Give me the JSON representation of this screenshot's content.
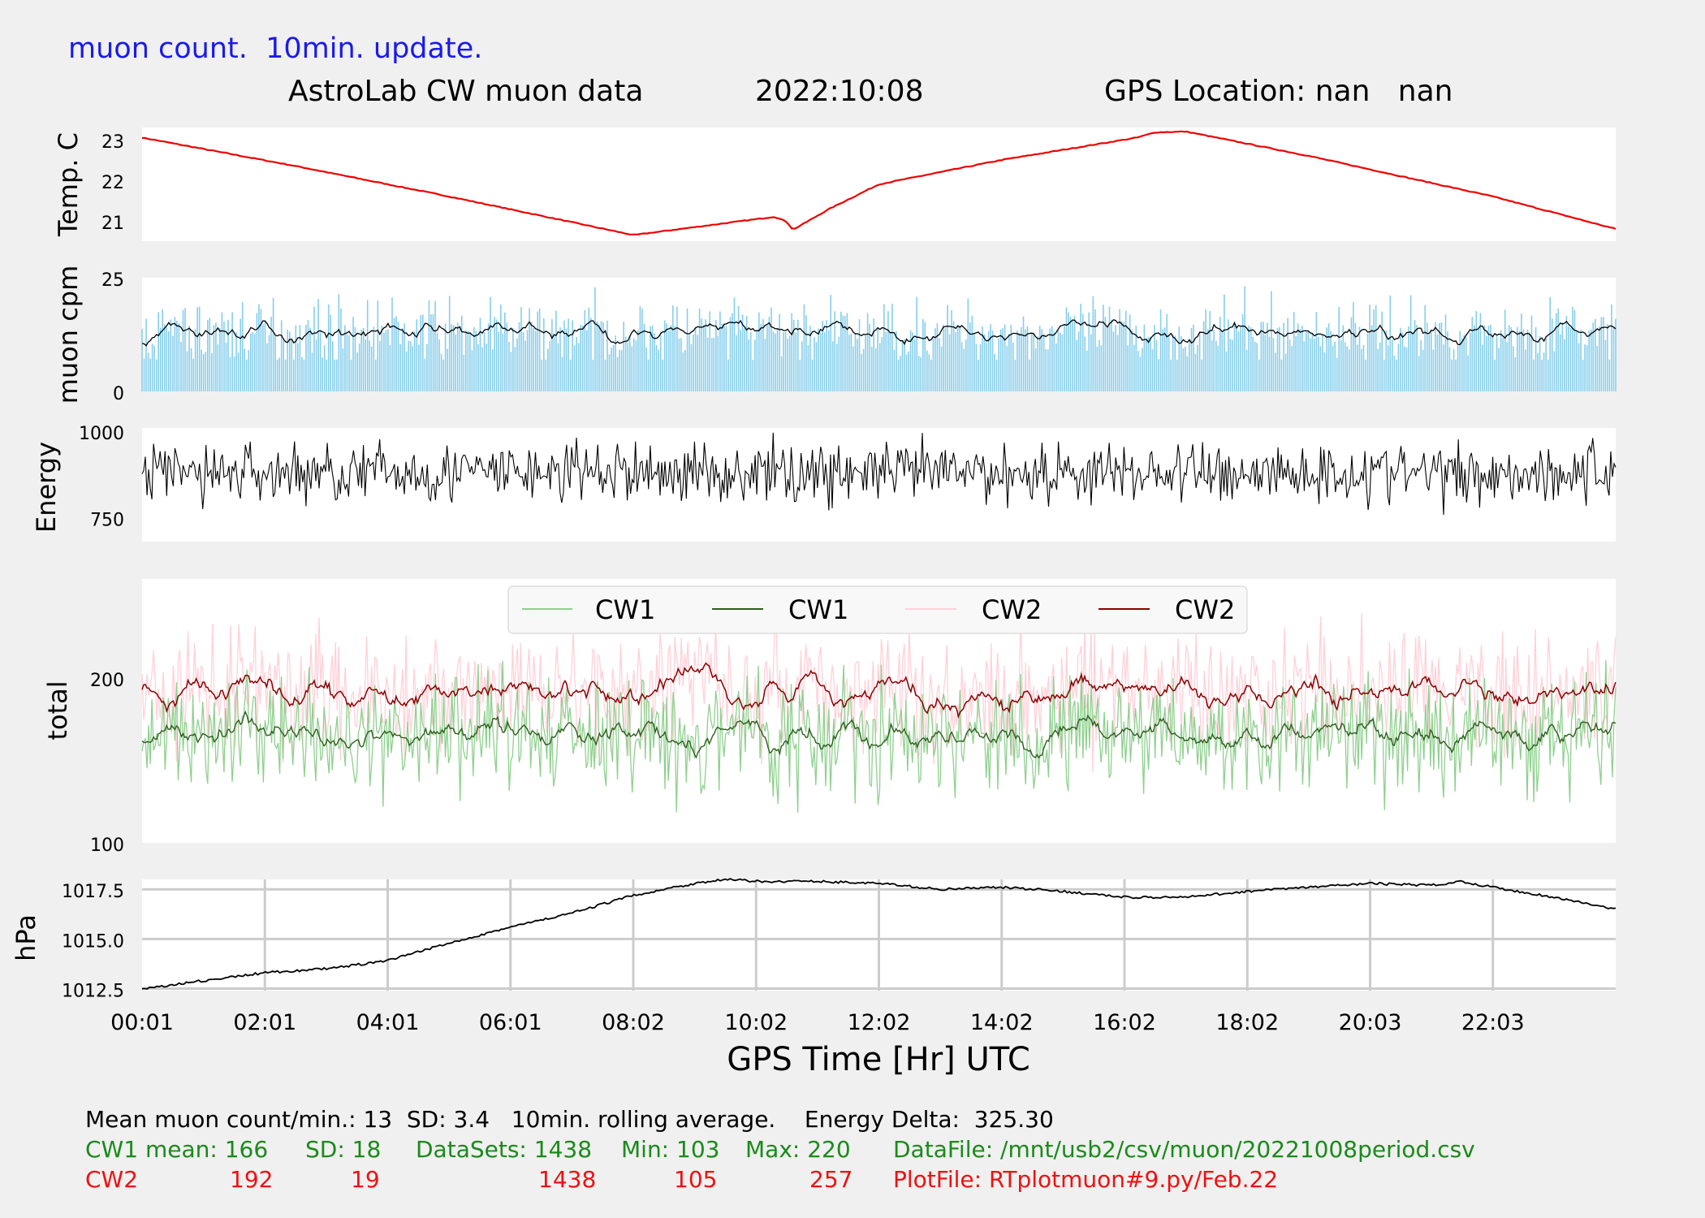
{
  "header": {
    "update_label": "muon count.  10min. update.",
    "title": "AstroLab CW muon data",
    "date": "2022:10:08",
    "gps_location": "GPS Location: nan   nan"
  },
  "x_axis": {
    "label": "GPS Time  [Hr] UTC",
    "ticks": [
      "00:01",
      "02:01",
      "04:01",
      "06:01",
      "08:02",
      "10:02",
      "12:02",
      "14:02",
      "16:02",
      "18:02",
      "20:03",
      "22:03"
    ]
  },
  "chart_data": [
    {
      "type": "line",
      "panel": "temperature",
      "ylabel": "Temp. C",
      "yticks": [
        21,
        22,
        23
      ],
      "ylim": [
        20.5,
        23.3
      ],
      "series": [
        {
          "color": "#ee0000",
          "x_hours": [
            0,
            2.5,
            5,
            8,
            10.3,
            10.5,
            10.6,
            11.2,
            12,
            14,
            16.2,
            16.5,
            17,
            19,
            22,
            24
          ],
          "values": [
            23.05,
            22.35,
            21.6,
            20.65,
            21.1,
            20.98,
            20.78,
            21.3,
            21.9,
            22.5,
            23.05,
            23.18,
            23.2,
            22.6,
            21.6,
            20.8
          ]
        }
      ]
    },
    {
      "type": "bar+line",
      "panel": "muon cpm",
      "ylabel": "muon cpm",
      "yticks": [
        0,
        25
      ],
      "ylim": [
        0,
        25
      ],
      "bar_color": "#87ceeb",
      "rolling_color": "#000000",
      "bar_typical_range": [
        7,
        24
      ],
      "rolling_mean": 13
    },
    {
      "type": "line",
      "panel": "energy",
      "ylabel": "Energy",
      "yticks": [
        750,
        1000
      ],
      "ylim": [
        680,
        1010
      ],
      "color": "#000000",
      "typical_range": [
        760,
        990
      ]
    },
    {
      "type": "line",
      "panel": "total",
      "ylabel": "total",
      "yticks": [
        100,
        200
      ],
      "ylim": [
        100,
        260
      ],
      "legend": [
        {
          "name": "CW1",
          "color": "#8fd08f"
        },
        {
          "name": "CW1",
          "color": "#2e5e1e"
        },
        {
          "name": "CW2",
          "color": "#ffd0d8"
        },
        {
          "name": "CW2",
          "color": "#8b0000"
        }
      ],
      "cw1_mean": 166,
      "cw2_mean": 192
    },
    {
      "type": "line",
      "panel": "pressure",
      "ylabel": "hPa",
      "yticks": [
        "1012.5",
        "1015.0",
        "1017.5"
      ],
      "ylim": [
        1012.4,
        1018.0
      ],
      "grid": true,
      "series": [
        {
          "color": "#000000",
          "x_hours": [
            0,
            1,
            2,
            3,
            4,
            5,
            6,
            7,
            8,
            8.5,
            9,
            9.5,
            10,
            11,
            12,
            13,
            14,
            15,
            16,
            17,
            18,
            19,
            20,
            21,
            21.5,
            22,
            23,
            24
          ],
          "values": [
            1012.5,
            1012.9,
            1013.3,
            1013.5,
            1013.9,
            1014.8,
            1015.6,
            1016.3,
            1017.2,
            1017.5,
            1017.8,
            1018.0,
            1017.9,
            1017.9,
            1017.8,
            1017.5,
            1017.6,
            1017.4,
            1017.1,
            1017.1,
            1017.4,
            1017.6,
            1017.8,
            1017.7,
            1017.9,
            1017.6,
            1017.1,
            1016.5
          ]
        }
      ]
    }
  ],
  "footer": {
    "line1": "Mean muon count/min.: 13  SD: 3.4   10min. rolling average.    Energy Delta:  325.30",
    "cw1": {
      "label": "CW1 mean: 166",
      "sd": "SD: 18",
      "datasets": "DataSets: 1438",
      "min": "Min: 103",
      "max": "Max: 220",
      "file": "DataFile: /mnt/usb2/csv/muon/20221008period.csv"
    },
    "cw2": {
      "label": "CW2",
      "mean": "192",
      "sd": "19",
      "datasets": "1438",
      "min": "105",
      "max": "257",
      "file": "PlotFile: RTplotmuon#9.py/Feb.22"
    }
  }
}
